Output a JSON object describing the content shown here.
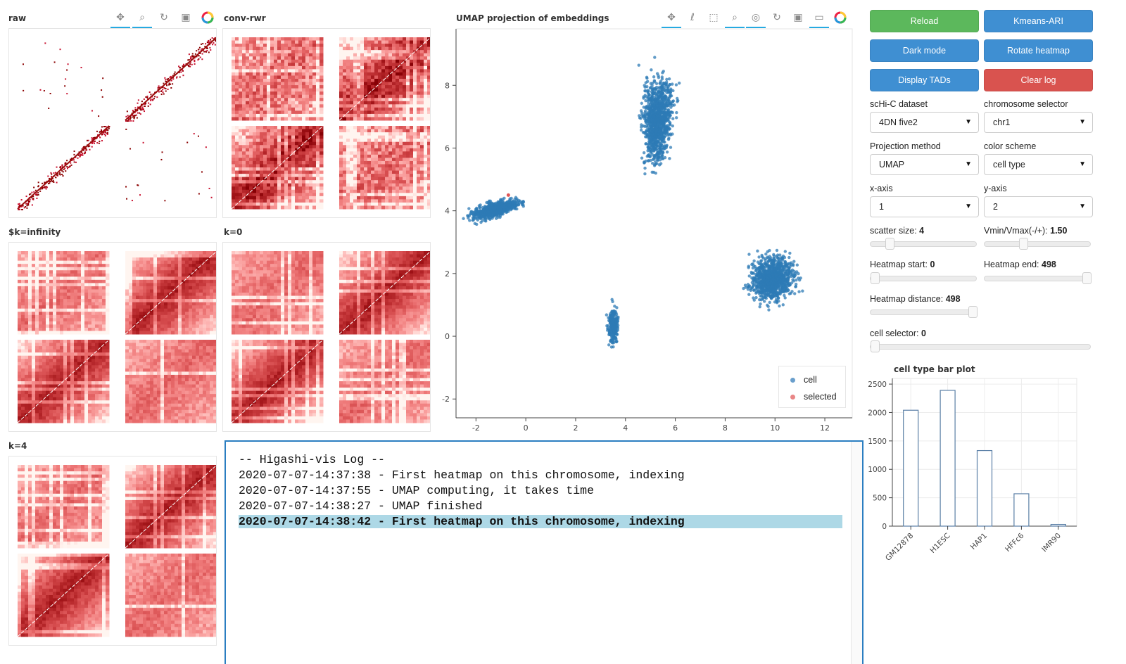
{
  "heatmap_panels": [
    {
      "title": "raw"
    },
    {
      "title": "conv-rwr"
    },
    {
      "title": "$k=infinity"
    },
    {
      "title": "k=0"
    },
    {
      "title": "k=4"
    }
  ],
  "umap": {
    "title": "UMAP projection of embeddings",
    "x_ticks": [
      "-2",
      "0",
      "2",
      "4",
      "6",
      "8",
      "10",
      "12"
    ],
    "y_ticks": [
      "-2",
      "0",
      "2",
      "4",
      "6",
      "8"
    ],
    "legend": [
      {
        "label": "cell",
        "color": "#1f77b4"
      },
      {
        "label": "selected",
        "color": "#d62728"
      }
    ],
    "point_color": "#2e7bb5",
    "selected_color": "#e05555"
  },
  "toolbar_icons": {
    "left": [
      "pan-icon",
      "box-zoom-icon",
      "reset-icon",
      "save-icon",
      "bokeh-logo-icon"
    ],
    "umap": [
      "pan-icon",
      "lasso-icon",
      "box-select-icon",
      "wheel-zoom-icon",
      "tap-icon",
      "reset-icon",
      "save-icon",
      "hover-icon",
      "bokeh-logo-icon"
    ]
  },
  "controls": {
    "reload": "Reload",
    "kmeans": "Kmeans-ARI",
    "dark_mode": "Dark mode",
    "rotate_heatmap": "Rotate heatmap",
    "display_tads": "Display TADs",
    "clear_log": "Clear log",
    "colors": {
      "green": "#5cb85c",
      "blue": "#3f8fd2",
      "red": "#d9534f"
    },
    "dataset_label": "scHi-C dataset",
    "dataset_value": "4DN five2",
    "chrom_label": "chromosome selector",
    "chrom_value": "chr1",
    "proj_label": "Projection method",
    "proj_value": "UMAP",
    "color_label": "color scheme",
    "color_value": "cell type",
    "x_label": "x-axis",
    "x_value": "1",
    "y_label": "y-axis",
    "y_value": "2",
    "scatter_size_label": "scatter size: ",
    "scatter_size_value": "4",
    "vminmax_label": "Vmin/Vmax(-/+): ",
    "vminmax_value": "1.50",
    "hm_start_label": "Heatmap start: ",
    "hm_start_value": "0",
    "hm_end_label": "Heatmap end: ",
    "hm_end_value": "498",
    "hm_dist_label": "Heatmap distance: ",
    "hm_dist_value": "498",
    "cell_sel_label": "cell selector: ",
    "cell_sel_value": "0",
    "slider_levels": {
      "scatter_size": 0.15,
      "vminmax": 0.35,
      "hm_start": 0.0,
      "hm_end": 1.0,
      "hm_dist": 1.0,
      "cell_selector": 0.0
    }
  },
  "log": {
    "lines": [
      "-- Higashi-vis Log --",
      "2020-07-07-14:37:38 - First heatmap on this chromosome, indexing",
      "2020-07-07-14:37:55 - UMAP computing, it takes time",
      "2020-07-07-14:38:27 - UMAP finished",
      "2020-07-07-14:38:42 - First heatmap on this chromosome, indexing"
    ]
  },
  "chart_data": {
    "type": "bar",
    "title": "cell type bar plot",
    "categories": [
      "GM12878",
      "H1ESC",
      "HAP1",
      "HFFc6",
      "IMR90"
    ],
    "values": [
      2040,
      2390,
      1330,
      570,
      30
    ],
    "y_ticks": [
      "0",
      "500",
      "1000",
      "1500",
      "2000",
      "2500"
    ],
    "ylim": [
      0,
      2600
    ],
    "grid": true,
    "bar_stroke": "#5a7fa6"
  }
}
